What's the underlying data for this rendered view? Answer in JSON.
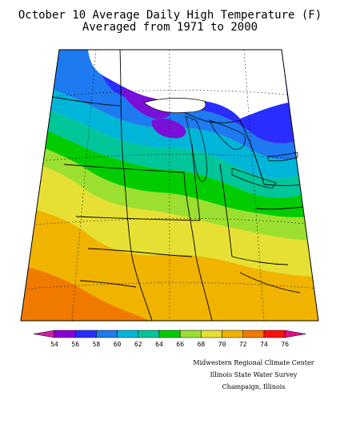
{
  "title": {
    "line1": "October 10 Average Daily High Temperature (F)",
    "line2": "Averaged from 1971 to 2000"
  },
  "legend": {
    "labels": [
      "54",
      "56",
      "58",
      "60",
      "62",
      "64",
      "66",
      "68",
      "70",
      "72",
      "74",
      "76"
    ],
    "colors": [
      "#cc1fa6",
      "#8a00d8",
      "#2a2dff",
      "#1e7af0",
      "#00b6d8",
      "#00c69a",
      "#00cc00",
      "#9be030",
      "#e6e034",
      "#f0b400",
      "#f07a00",
      "#ff1010",
      "#e0108a"
    ]
  },
  "credits": {
    "line1": "Midwestern Regional Climate Center",
    "line2": "Illinois State Water Survey",
    "line3": "Champaign, Illinois"
  }
}
